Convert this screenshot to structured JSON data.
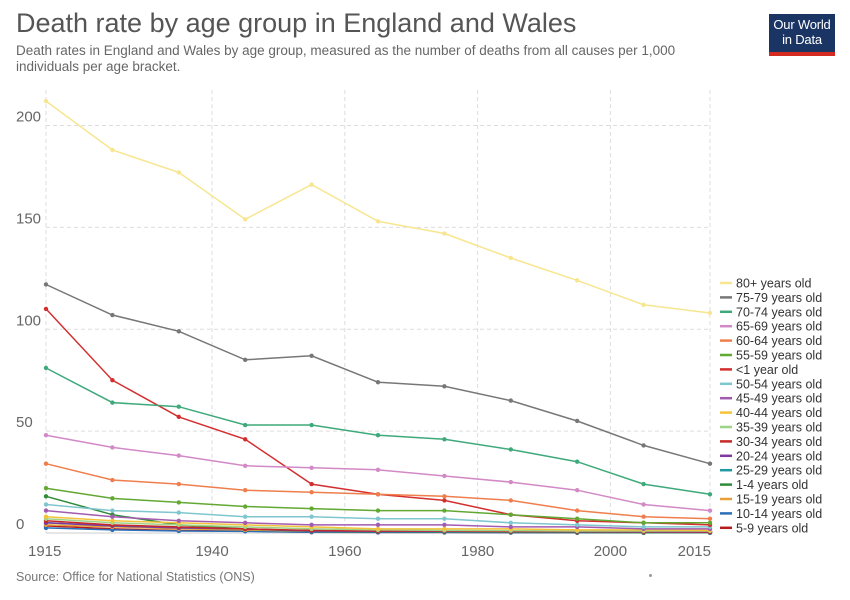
{
  "header": {
    "title": "Death rate by age group in England and Wales",
    "subtitle": "Death rates in England and Wales by age group, measured as the number of deaths from all causes per 1,000 individuals per age bracket."
  },
  "logo": {
    "line1": "Our World",
    "line2": "in Data",
    "bg_color": "#1a3563",
    "accent_color": "#d42b21"
  },
  "footer": {
    "source": "Source: Office for National Statistics (ONS)"
  },
  "chart_data": {
    "type": "line",
    "x": [
      1915,
      1925,
      1935,
      1945,
      1955,
      1965,
      1975,
      1985,
      1995,
      2005,
      2015
    ],
    "xlim": [
      1915,
      2015
    ],
    "ylim": [
      0,
      215
    ],
    "xticks": [
      1915,
      1940,
      1960,
      1980,
      2000,
      2015
    ],
    "yticks": [
      0,
      50,
      100,
      150,
      200
    ],
    "grid": true,
    "legend_position": "right",
    "series": [
      {
        "name": "80+ years old",
        "color": "#f7e68f",
        "values": [
          212,
          188,
          177,
          154,
          171,
          153,
          147,
          135,
          124,
          112,
          108
        ]
      },
      {
        "name": "75-79 years old",
        "color": "#777777",
        "values": [
          122,
          107,
          99,
          85,
          87,
          74,
          72,
          65,
          55,
          43,
          34
        ]
      },
      {
        "name": "70-74 years old",
        "color": "#3ea97b",
        "values": [
          81,
          64,
          62,
          53,
          53,
          48,
          46,
          41,
          35,
          24,
          19
        ]
      },
      {
        "name": "65-69 years old",
        "color": "#d289c6",
        "values": [
          48,
          42,
          38,
          33,
          32,
          31,
          28,
          25,
          21,
          14,
          11
        ]
      },
      {
        "name": "60-64 years old",
        "color": "#ef7e4c",
        "values": [
          34,
          26,
          24,
          21,
          20,
          19,
          18,
          16,
          11,
          8,
          7
        ]
      },
      {
        "name": "55-59 years old",
        "color": "#62a833",
        "values": [
          22,
          17,
          15,
          13,
          12,
          11,
          11,
          9,
          7,
          5,
          5
        ]
      },
      {
        "name": "<1 year old",
        "color": "#d32f2f",
        "values": [
          110,
          75,
          57,
          46,
          24,
          19,
          16,
          9,
          6,
          5,
          4
        ]
      },
      {
        "name": "50-54 years old",
        "color": "#7fc6cf",
        "values": [
          14,
          11,
          10,
          8,
          8,
          7,
          7,
          5,
          4,
          3,
          3
        ]
      },
      {
        "name": "45-49 years old",
        "color": "#a35bb0",
        "values": [
          11,
          8,
          6,
          5,
          4,
          4,
          4,
          3,
          3,
          2,
          2
        ]
      },
      {
        "name": "40-44 years old",
        "color": "#f4c33a",
        "values": [
          8,
          6,
          5,
          4,
          3,
          2,
          2,
          2,
          1.5,
          1.5,
          1.3
        ]
      },
      {
        "name": "35-39 years old",
        "color": "#9fd38a",
        "values": [
          7,
          5,
          4,
          3,
          2,
          1.5,
          1.3,
          1.2,
          1,
          1,
          1
        ]
      },
      {
        "name": "30-34 years old",
        "color": "#c62828",
        "values": [
          6,
          4,
          3,
          2,
          1.3,
          1,
          1,
          0.8,
          0.8,
          0.7,
          0.6
        ]
      },
      {
        "name": "20-24 years old",
        "color": "#7e3a9e",
        "values": [
          5,
          3.5,
          2.5,
          2,
          1,
          0.8,
          0.8,
          0.7,
          0.6,
          0.5,
          0.4
        ]
      },
      {
        "name": "25-29 years old",
        "color": "#1f9aa0",
        "values": [
          5,
          3.5,
          2.5,
          2,
          1,
          0.8,
          0.7,
          0.7,
          0.6,
          0.5,
          0.4
        ]
      },
      {
        "name": "1-4 years old",
        "color": "#2e8b3a",
        "values": [
          18,
          9,
          4,
          2,
          0.8,
          0.6,
          0.5,
          0.4,
          0.3,
          0.2,
          0.2
        ]
      },
      {
        "name": "15-19 years old",
        "color": "#e8a13a",
        "values": [
          4,
          3,
          2,
          1.5,
          0.8,
          0.7,
          0.7,
          0.6,
          0.5,
          0.4,
          0.3
        ]
      },
      {
        "name": "10-14 years old",
        "color": "#2a6fb8",
        "values": [
          2.5,
          1.5,
          1,
          0.8,
          0.4,
          0.3,
          0.3,
          0.2,
          0.2,
          0.1,
          0.1
        ]
      },
      {
        "name": "5-9 years old",
        "color": "#b71c1c",
        "values": [
          3.5,
          2,
          1.2,
          1,
          0.4,
          0.3,
          0.3,
          0.2,
          0.1,
          0.1,
          0.1
        ]
      }
    ]
  }
}
